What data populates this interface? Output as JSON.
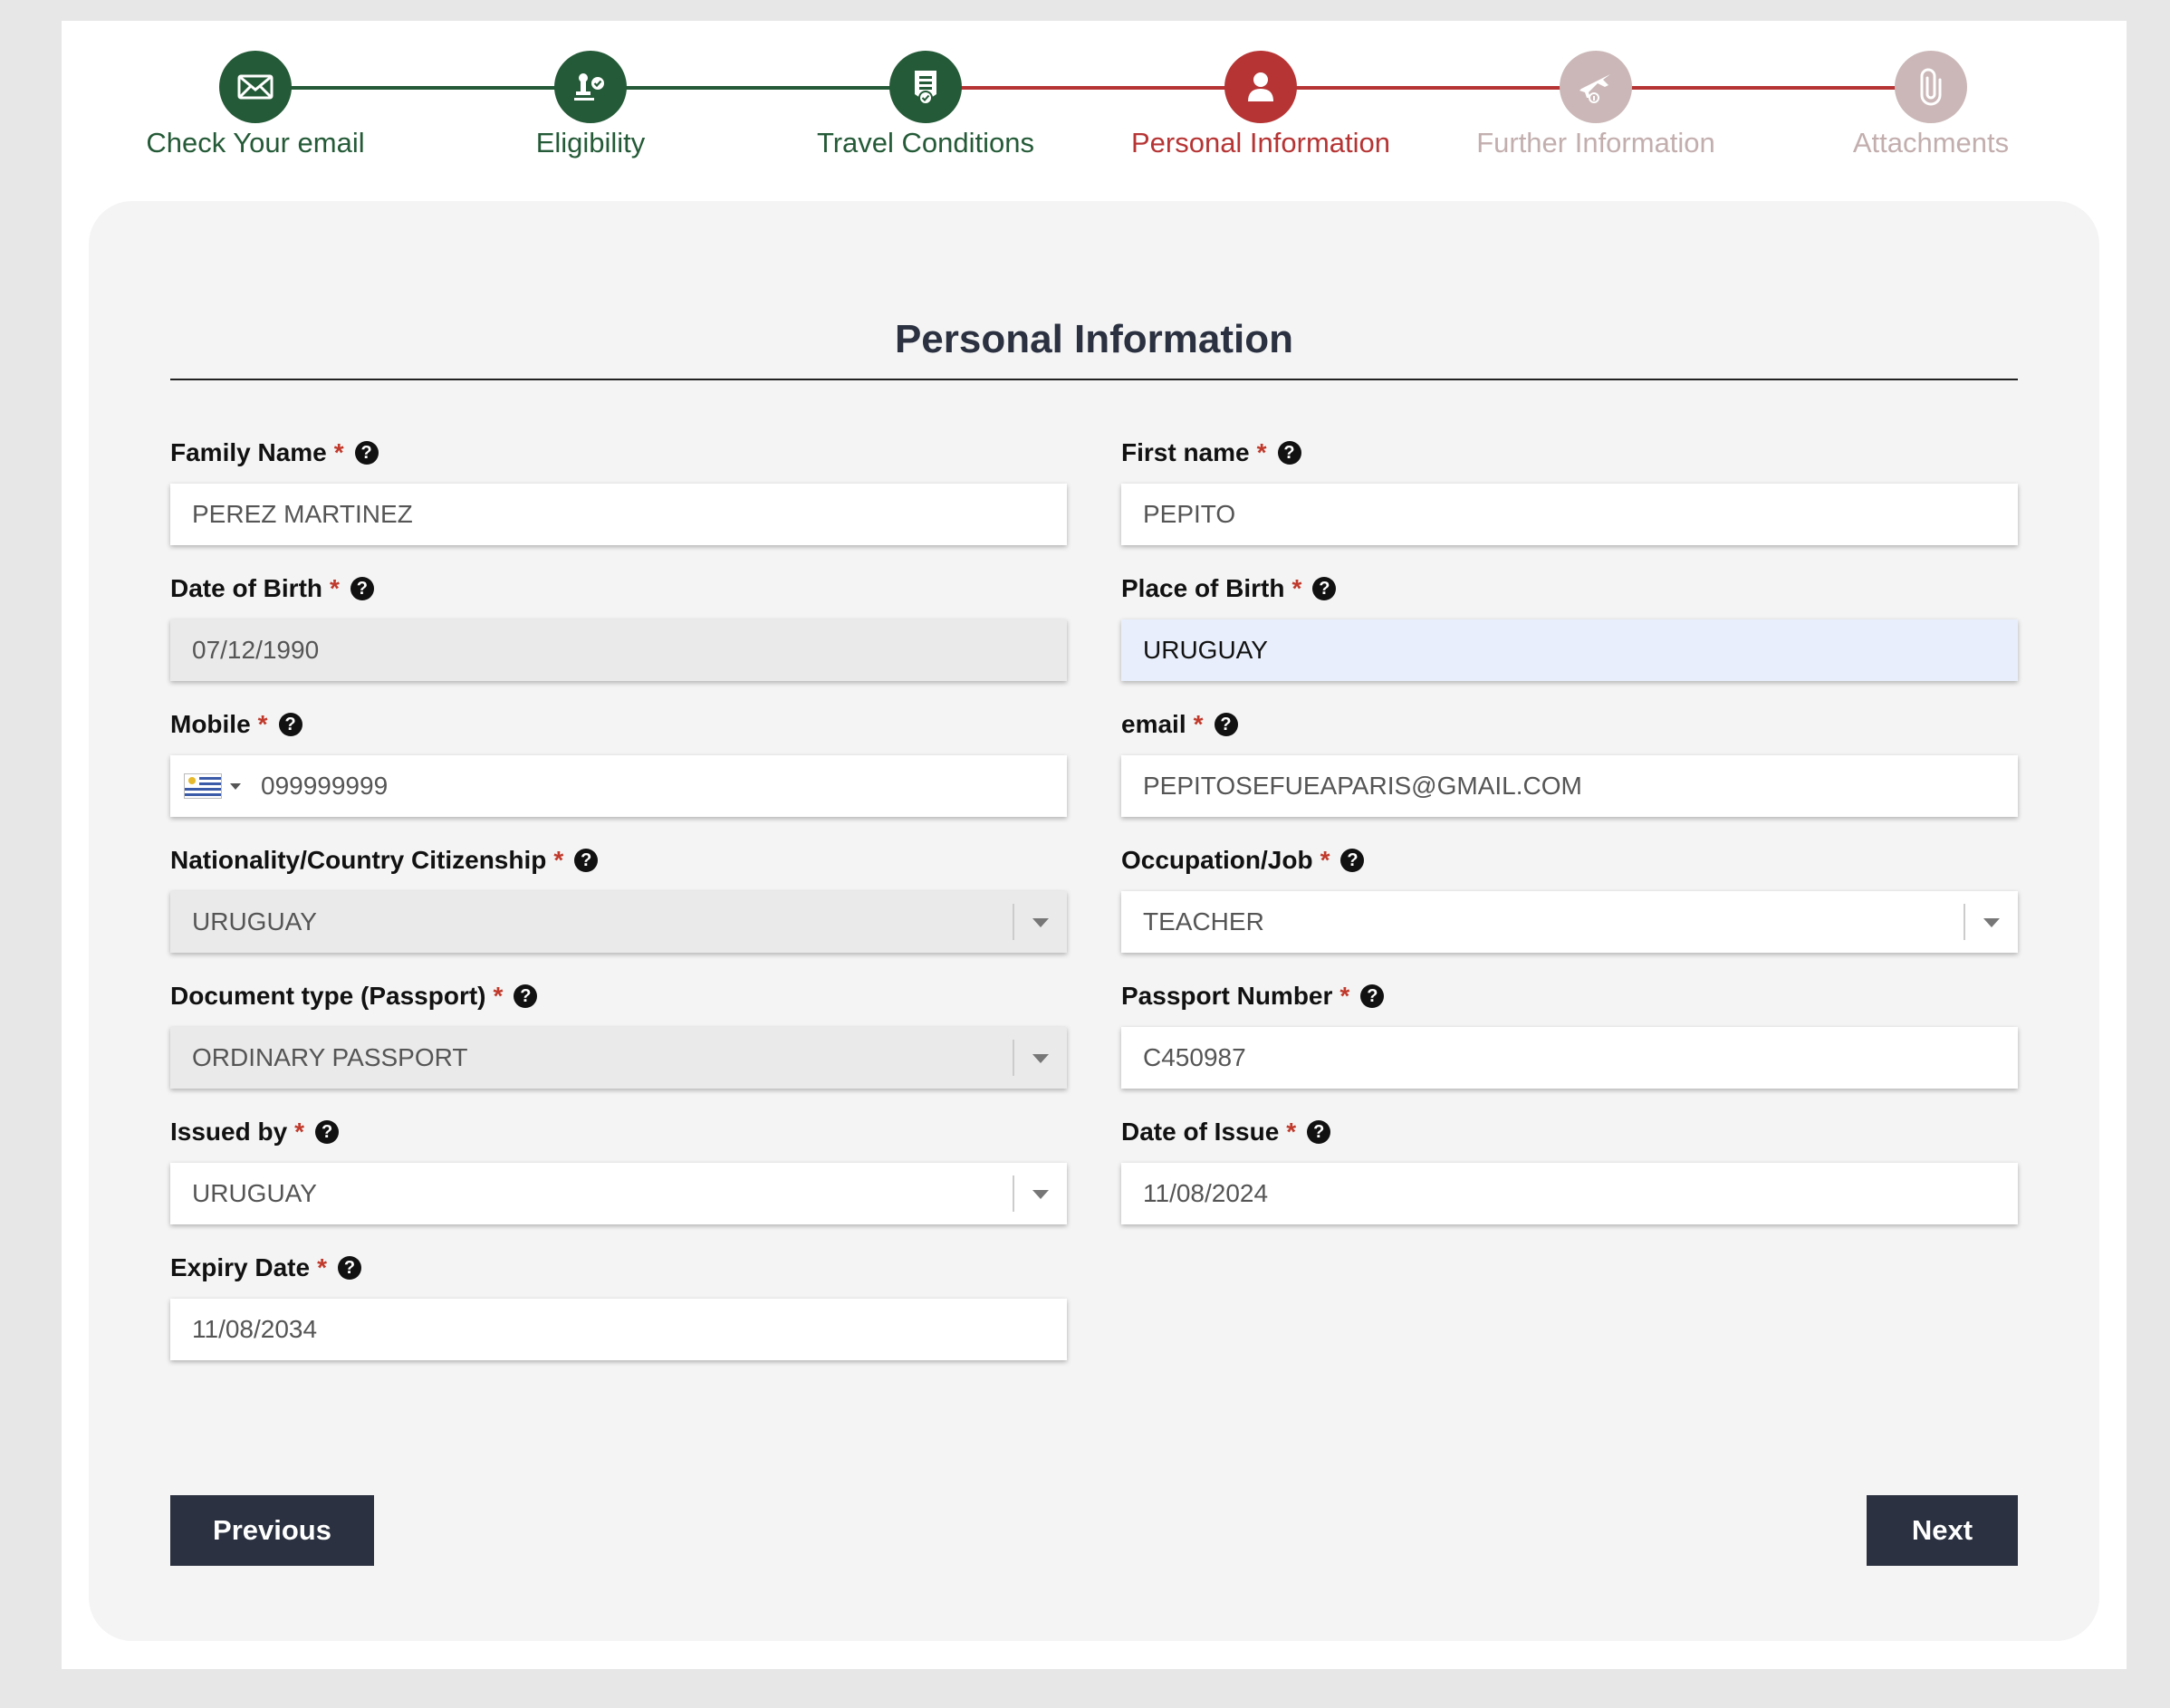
{
  "stepper": {
    "steps": [
      {
        "label": "Check Your email",
        "state": "done",
        "icon": "envelope-icon"
      },
      {
        "label": "Eligibility",
        "state": "done",
        "icon": "eligibility-icon"
      },
      {
        "label": "Travel Conditions",
        "state": "done",
        "icon": "document-check-icon"
      },
      {
        "label": "Personal Information",
        "state": "active",
        "icon": "person-icon"
      },
      {
        "label": "Further Information",
        "state": "todo",
        "icon": "airplane-icon"
      },
      {
        "label": "Attachments",
        "state": "todo",
        "icon": "paperclip-icon"
      }
    ]
  },
  "colors": {
    "done": "#245a37",
    "active": "#b63434",
    "todo": "#cbb7b7",
    "button": "#2b3140"
  },
  "form": {
    "title": "Personal Information",
    "required_mark": "*",
    "help_glyph": "?",
    "family_name": {
      "label": "Family Name",
      "value": "PEREZ MARTINEZ"
    },
    "first_name": {
      "label": "First name",
      "value": "PEPITO"
    },
    "date_of_birth": {
      "label": "Date of Birth",
      "value": "07/12/1990"
    },
    "place_of_birth": {
      "label": "Place of Birth",
      "value": "URUGUAY"
    },
    "mobile": {
      "label": "Mobile",
      "value": "099999999",
      "country_flag": "uruguay-flag-icon"
    },
    "email": {
      "label": "email",
      "value": "PEPITOSEFUEAPARIS@GMAIL.COM"
    },
    "nationality": {
      "label": "Nationality/Country Citizenship",
      "value": "URUGUAY"
    },
    "occupation": {
      "label": "Occupation/Job",
      "value": "TEACHER"
    },
    "document_type": {
      "label": "Document type (Passport)",
      "value": "ORDINARY PASSPORT"
    },
    "passport_number": {
      "label": "Passport Number",
      "value": "C450987"
    },
    "issued_by": {
      "label": "Issued by",
      "value": "URUGUAY"
    },
    "date_of_issue": {
      "label": "Date of Issue",
      "value": "11/08/2024"
    },
    "expiry_date": {
      "label": "Expiry Date",
      "value": "11/08/2034"
    }
  },
  "actions": {
    "previous": "Previous",
    "next": "Next"
  }
}
